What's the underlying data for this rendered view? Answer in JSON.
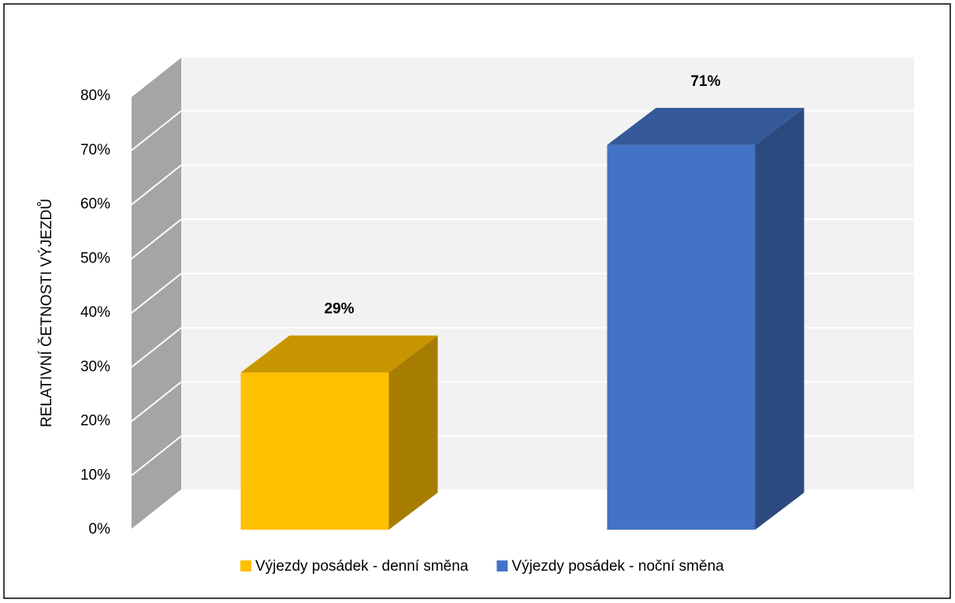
{
  "chart_data": {
    "type": "bar3d",
    "y_axis_label": "RELATIVNÍ ČETNOSTI VÝJEZDŮ",
    "categories": [
      null
    ],
    "series": [
      {
        "name": "Výjezdy posádek - denní směna",
        "color": "#ffc000",
        "values": [
          29
        ],
        "value_labels": [
          "29%"
        ]
      },
      {
        "name": "Výjezdy posádek - noční směna",
        "color": "#4472c4",
        "values": [
          71
        ],
        "value_labels": [
          "71%"
        ]
      }
    ],
    "ylim": [
      0,
      80
    ],
    "yticks": [
      {
        "value": 0,
        "label": "0%"
      },
      {
        "value": 10,
        "label": "10%"
      },
      {
        "value": 20,
        "label": "20%"
      },
      {
        "value": 30,
        "label": "30%"
      },
      {
        "value": 40,
        "label": "40%"
      },
      {
        "value": 50,
        "label": "50%"
      },
      {
        "value": 60,
        "label": "60%"
      },
      {
        "value": 70,
        "label": "70%"
      },
      {
        "value": 80,
        "label": "80%"
      }
    ],
    "grid": true,
    "legend": "bottom"
  }
}
